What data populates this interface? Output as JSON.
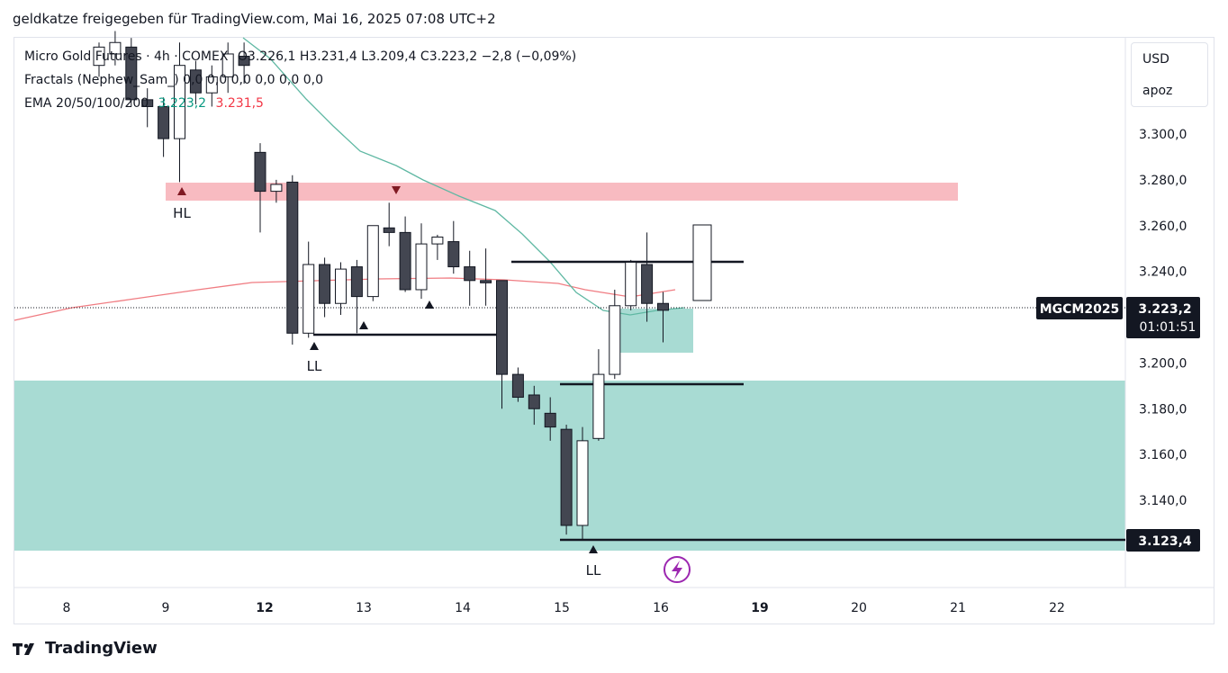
{
  "caption": "geldkatze freigegeben für TradingView.com, Mai 16, 2025 07:08 UTC+2",
  "legend": {
    "symbol": "Micro Gold Futures · 4h · COMEX",
    "ohlc": "O3.226,1  H3.231,4  L3.209,4  C3.223,2  −2,8 (−0,09%)",
    "fractals": "Fractals (Nephew_Sam_)  0,0  0,0  0,0  0,0  0,0  0,0",
    "ema_label": "EMA 20/50/100/200",
    "ema_value_1": "3.223,2",
    "ema_value_2": "3.231,5"
  },
  "scale": {
    "currency": "USD",
    "mode": "apoz"
  },
  "footer": {
    "brand": "TradingView"
  },
  "chart_data": {
    "type": "candlestick",
    "ylim": [
      3114,
      3335
    ],
    "price_ticks": [
      "3.300,0",
      "3.280,0",
      "3.260,0",
      "3.240,0",
      "3.200,0",
      "3.180,0",
      "3.160,0",
      "3.140,0"
    ],
    "price_tick_values": [
      3300,
      3280,
      3260,
      3240,
      3200,
      3180,
      3160,
      3140
    ],
    "date_ticks": [
      {
        "label": "8",
        "bold": false
      },
      {
        "label": "9",
        "bold": false
      },
      {
        "label": "12",
        "bold": true
      },
      {
        "label": "13",
        "bold": false
      },
      {
        "label": "14",
        "bold": false
      },
      {
        "label": "15",
        "bold": false
      },
      {
        "label": "16",
        "bold": false
      },
      {
        "label": "19",
        "bold": true
      },
      {
        "label": "20",
        "bold": false
      },
      {
        "label": "21",
        "bold": false
      },
      {
        "label": "22",
        "bold": false
      }
    ],
    "last_price": {
      "symbol_label": "MGCM2025",
      "value": "3.223,2",
      "value_num": 3223.2,
      "countdown": "01:01:51"
    },
    "low_marker": {
      "value": "3.123,4",
      "value_num": 3123.4
    },
    "candles": [
      {
        "o": 3330,
        "h": 3340,
        "l": 3325,
        "c": 3338
      },
      {
        "o": 3335,
        "h": 3345,
        "l": 3330,
        "c": 3340
      },
      {
        "o": 3338,
        "h": 3342,
        "l": 3312,
        "c": 3315
      },
      {
        "o": 3315,
        "h": 3320,
        "l": 3303,
        "c": 3312
      },
      {
        "o": 3312,
        "h": 3316,
        "l": 3290,
        "c": 3298
      },
      {
        "o": 3298,
        "h": 3340,
        "l": 3279,
        "c": 3330
      },
      {
        "o": 3328,
        "h": 3332,
        "l": 3313,
        "c": 3318
      },
      {
        "o": 3318,
        "h": 3330,
        "l": 3312,
        "c": 3325
      },
      {
        "o": 3325,
        "h": 3340,
        "l": 3318,
        "c": 3335
      },
      {
        "o": 3334,
        "h": 3340,
        "l": 3322,
        "c": 3330
      },
      {
        "o": 3292,
        "h": 3296,
        "l": 3257,
        "c": 3275
      },
      {
        "o": 3275,
        "h": 3280,
        "l": 3270,
        "c": 3278
      },
      {
        "o": 3279,
        "h": 3282,
        "l": 3208,
        "c": 3213
      },
      {
        "o": 3213,
        "h": 3253,
        "l": 3211,
        "c": 3243
      },
      {
        "o": 3243,
        "h": 3246,
        "l": 3220,
        "c": 3226
      },
      {
        "o": 3226,
        "h": 3244,
        "l": 3221,
        "c": 3241
      },
      {
        "o": 3242,
        "h": 3245,
        "l": 3213,
        "c": 3229
      },
      {
        "o": 3229,
        "h": 3260,
        "l": 3227,
        "c": 3260
      },
      {
        "o": 3259,
        "h": 3270,
        "l": 3251,
        "c": 3257
      },
      {
        "o": 3257,
        "h": 3264,
        "l": 3231,
        "c": 3232
      },
      {
        "o": 3232,
        "h": 3261,
        "l": 3228,
        "c": 3252
      },
      {
        "o": 3252,
        "h": 3256,
        "l": 3245,
        "c": 3255
      },
      {
        "o": 3253,
        "h": 3262,
        "l": 3239,
        "c": 3242
      },
      {
        "o": 3242,
        "h": 3249,
        "l": 3225,
        "c": 3236
      },
      {
        "o": 3236,
        "h": 3250,
        "l": 3225,
        "c": 3235
      },
      {
        "o": 3236,
        "h": 3236,
        "l": 3180,
        "c": 3195
      },
      {
        "o": 3195,
        "h": 3198,
        "l": 3183,
        "c": 3185
      },
      {
        "o": 3186,
        "h": 3190,
        "l": 3173,
        "c": 3180
      },
      {
        "o": 3178,
        "h": 3185,
        "l": 3166,
        "c": 3172
      },
      {
        "o": 3171,
        "h": 3173,
        "l": 3125,
        "c": 3129
      },
      {
        "o": 3129,
        "h": 3172,
        "l": 3123,
        "c": 3166
      },
      {
        "o": 3167,
        "h": 3206,
        "l": 3166,
        "c": 3195
      },
      {
        "o": 3195,
        "h": 3232,
        "l": 3193,
        "c": 3225
      },
      {
        "o": 3225,
        "h": 3245,
        "l": 3223,
        "c": 3244
      },
      {
        "o": 3243,
        "h": 3257,
        "l": 3218,
        "c": 3226
      },
      {
        "o": 3226,
        "h": 3231,
        "l": 3209,
        "c": 3223
      }
    ]
  }
}
